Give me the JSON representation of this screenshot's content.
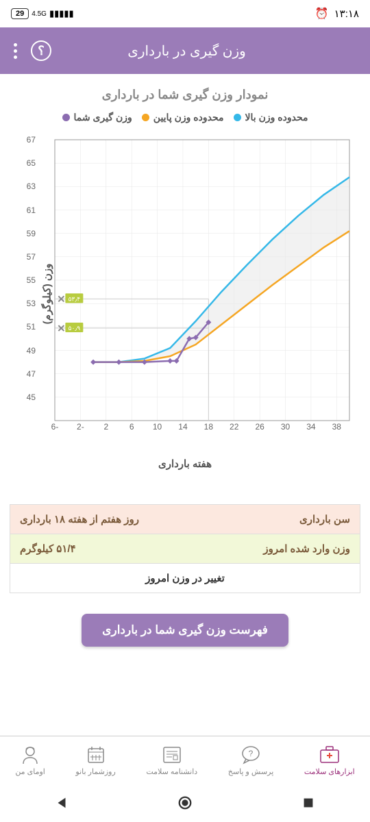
{
  "status": {
    "battery": "29",
    "signal": "4.5G",
    "time": "۱۳:۱۸"
  },
  "appbar": {
    "title": "وزن گیری در بارداری"
  },
  "chart": {
    "title": "نمودار وزن گیری شما در بارداری",
    "legend": {
      "upper": "محدوده وزن بالا",
      "lower": "محدوده وزن پایین",
      "yours": "وزن گیری شما"
    },
    "y_label": "وزن (کیلوگرم)",
    "x_label": "هفته بارداری",
    "y_min": 43,
    "y_max": 67,
    "y_step": 2,
    "x_min": -6,
    "x_max": 40,
    "x_step": 4,
    "colors": {
      "upper": "#35b8e8",
      "lower": "#f5a623",
      "yours": "#8b6cb0",
      "band": "#eaeaea",
      "grid": "#e5e5e5",
      "crosshair": "#cccccc",
      "badge_bg": "#b8cc3f",
      "badge_text": "#ffffff"
    },
    "upper_line": [
      [
        0,
        48
      ],
      [
        4,
        48
      ],
      [
        8,
        48.3
      ],
      [
        12,
        49.2
      ],
      [
        16,
        51.5
      ],
      [
        20,
        54
      ],
      [
        24,
        56.3
      ],
      [
        28,
        58.5
      ],
      [
        32,
        60.5
      ],
      [
        36,
        62.3
      ],
      [
        40,
        63.8
      ]
    ],
    "lower_line": [
      [
        0,
        48
      ],
      [
        4,
        48
      ],
      [
        8,
        48.1
      ],
      [
        12,
        48.5
      ],
      [
        16,
        49.5
      ],
      [
        20,
        51.2
      ],
      [
        24,
        52.9
      ],
      [
        28,
        54.6
      ],
      [
        32,
        56.2
      ],
      [
        36,
        57.8
      ],
      [
        40,
        59.2
      ]
    ],
    "your_line": [
      [
        0,
        48
      ],
      [
        4,
        48
      ],
      [
        8,
        48
      ],
      [
        12,
        48.1
      ],
      [
        13,
        48.1
      ],
      [
        15,
        50.0
      ],
      [
        16,
        50.1
      ],
      [
        18,
        51.4
      ]
    ],
    "markers": [
      {
        "x": -5,
        "y": 53.4,
        "label": "۵۳٫۴"
      },
      {
        "x": -5,
        "y": 50.9,
        "label": "۵۰٫۹"
      }
    ],
    "crosshair": {
      "x": 18,
      "y_low": 50.9,
      "y_high": 53.4
    }
  },
  "info": {
    "age_label": "سن بارداری",
    "age_value": "روز هفتم از هفته ۱۸ بارداری",
    "weight_label": "وزن وارد شده امروز",
    "weight_value": "۵۱/۴ کیلوگرم",
    "change_label": "تغییر در وزن امروز"
  },
  "button": {
    "label": "فهرست وزن گیری شما در بارداری"
  },
  "nav": {
    "tools": "ابزارهای سلامت",
    "qa": "پرسش و پاسخ",
    "wiki": "دانشنامه سلامت",
    "calendar": "روزشمار بانو",
    "profile": "اومای من"
  }
}
